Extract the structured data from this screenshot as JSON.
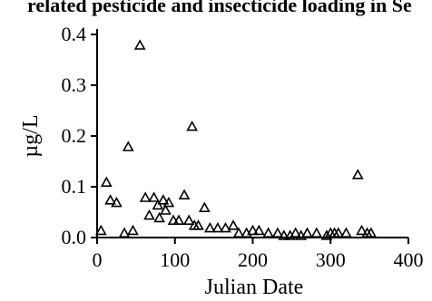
{
  "chart_data": {
    "type": "scatter",
    "title": "related pesticide and insecticide loading in Se",
    "xlabel": "Julian Date",
    "ylabel": "µg/L",
    "xlim": [
      0,
      400
    ],
    "ylim": [
      0,
      0.4
    ],
    "x_ticks": [
      0,
      100,
      200,
      300,
      400
    ],
    "y_ticks": [
      0.0,
      0.1,
      0.2,
      0.3,
      0.4
    ],
    "x_tick_labels": [
      "0",
      "100",
      "200",
      "300",
      "400"
    ],
    "y_tick_labels": [
      "0.0",
      "0.1",
      "0.2",
      "0.3",
      "0.4"
    ],
    "grid": false,
    "legend": "none",
    "marker": "triangle-open",
    "points": [
      [
        5,
        0.01
      ],
      [
        12,
        0.105
      ],
      [
        17,
        0.07
      ],
      [
        25,
        0.065
      ],
      [
        35,
        0.005
      ],
      [
        40,
        0.175
      ],
      [
        46,
        0.01
      ],
      [
        55,
        0.375
      ],
      [
        62,
        0.075
      ],
      [
        67,
        0.04
      ],
      [
        73,
        0.075
      ],
      [
        78,
        0.06
      ],
      [
        80,
        0.035
      ],
      [
        85,
        0.07
      ],
      [
        88,
        0.05
      ],
      [
        92,
        0.065
      ],
      [
        98,
        0.03
      ],
      [
        105,
        0.03
      ],
      [
        112,
        0.08
      ],
      [
        118,
        0.03
      ],
      [
        122,
        0.215
      ],
      [
        125,
        0.02
      ],
      [
        130,
        0.02
      ],
      [
        138,
        0.055
      ],
      [
        145,
        0.015
      ],
      [
        155,
        0.015
      ],
      [
        165,
        0.015
      ],
      [
        175,
        0.02
      ],
      [
        182,
        0.005
      ],
      [
        192,
        0.005
      ],
      [
        200,
        0.01
      ],
      [
        208,
        0.01
      ],
      [
        220,
        0.005
      ],
      [
        232,
        0.005
      ],
      [
        240,
        0.0
      ],
      [
        248,
        0.0
      ],
      [
        255,
        0.005
      ],
      [
        262,
        0.0
      ],
      [
        270,
        0.005
      ],
      [
        282,
        0.005
      ],
      [
        295,
        0.0
      ],
      [
        300,
        0.005
      ],
      [
        305,
        0.005
      ],
      [
        310,
        0.005
      ],
      [
        320,
        0.005
      ],
      [
        335,
        0.12
      ],
      [
        340,
        0.01
      ],
      [
        347,
        0.005
      ],
      [
        352,
        0.005
      ]
    ]
  }
}
